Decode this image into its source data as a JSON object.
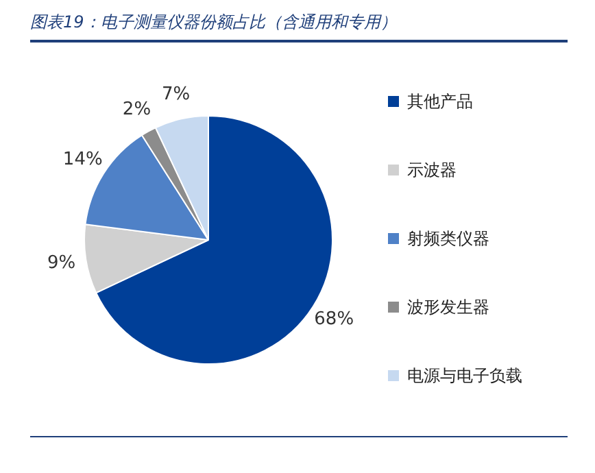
{
  "chart_data": {
    "type": "pie",
    "title": "图表19：电子测量仪器份额占比（含通用和专用）",
    "categories": [
      "其他产品",
      "示波器",
      "射频类仪器",
      "波形发生器",
      "电源与电子负载"
    ],
    "values": [
      68,
      9,
      14,
      2,
      7
    ],
    "colors": [
      "#003f98",
      "#d0d0d0",
      "#4f81c7",
      "#8c8c8c",
      "#c6d9f0"
    ],
    "value_labels": [
      "68%",
      "9%",
      "14%",
      "2%",
      "7%"
    ],
    "legend": "right"
  }
}
